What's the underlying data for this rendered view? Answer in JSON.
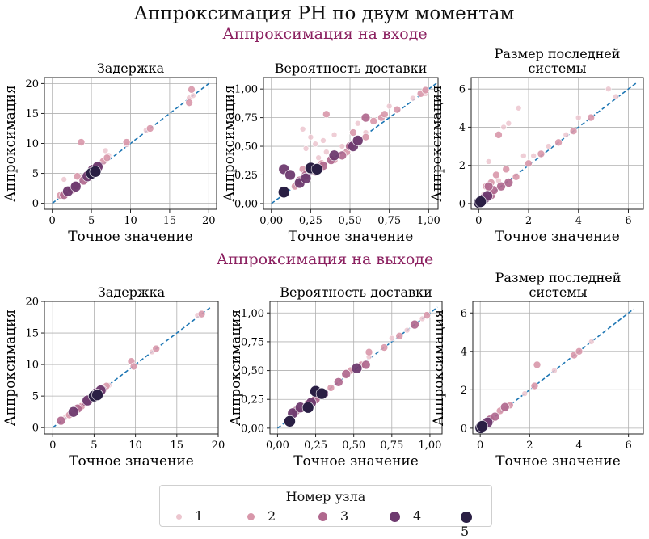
{
  "title": "Аппроксимация PH по двум моментам",
  "section_input": "Аппроксимация на входе",
  "section_output": "Аппроксимация на выходе",
  "colors": {
    "section": "#8b2060",
    "diag": "#1f77b4",
    "nodes": [
      "#ecc6cf",
      "#d897aa",
      "#b0688e",
      "#6e3a6f",
      "#2a1f44"
    ]
  },
  "legend": {
    "title": "Номер узла",
    "items": [
      "1",
      "2",
      "3",
      "4",
      "5"
    ]
  },
  "chart_data": [
    {
      "type": "scatter",
      "title": "Задержка",
      "xlabel": "Точное значение",
      "ylabel": "Аппроксимация",
      "xlim": [
        -1,
        21
      ],
      "ylim": [
        -1,
        21
      ],
      "xticks": [
        0,
        5,
        10,
        15,
        20
      ],
      "yticks": [
        0,
        5,
        10,
        15,
        20
      ],
      "xtick_labels": [
        "0",
        "5",
        "10",
        "15",
        "20"
      ],
      "ytick_labels": [
        "0",
        "5",
        "10",
        "15",
        "20"
      ],
      "diag_max": 20,
      "grid": true,
      "series": [
        {
          "node": 1,
          "points": [
            [
              1.5,
              4
            ],
            [
              3,
              3.2
            ],
            [
              3.8,
              4.5
            ],
            [
              6.8,
              8.8
            ],
            [
              7.2,
              8
            ],
            [
              9.5,
              9.8
            ],
            [
              12,
              12.2
            ],
            [
              17.5,
              17.6
            ],
            [
              18,
              18
            ],
            [
              2.5,
              2.6
            ]
          ]
        },
        {
          "node": 2,
          "points": [
            [
              1,
              1.3
            ],
            [
              2,
              2.2
            ],
            [
              3.2,
              4.5
            ],
            [
              3.7,
              10.2
            ],
            [
              6.5,
              7
            ],
            [
              7,
              7.6
            ],
            [
              9.5,
              10.2
            ],
            [
              12.5,
              12.5
            ],
            [
              17.5,
              16.8
            ],
            [
              17.8,
              19
            ]
          ]
        },
        {
          "node": 3,
          "points": [
            [
              1.5,
              1.4
            ],
            [
              2.5,
              2.3
            ],
            [
              3,
              3
            ],
            [
              4,
              3.8
            ],
            [
              5.5,
              5.2
            ],
            [
              6,
              6.3
            ]
          ]
        },
        {
          "node": 4,
          "points": [
            [
              2,
              2
            ],
            [
              3,
              2.8
            ],
            [
              4.5,
              4.5
            ],
            [
              5.2,
              5.6
            ],
            [
              5.8,
              6.1
            ]
          ]
        },
        {
          "node": 5,
          "points": [
            [
              5,
              5
            ],
            [
              5.5,
              5.3
            ]
          ]
        }
      ]
    },
    {
      "type": "scatter",
      "title": "Вероятность доставки",
      "xlabel": "Точное значение",
      "ylabel": "Аппроксимация",
      "xlim": [
        -0.05,
        1.06
      ],
      "ylim": [
        -0.05,
        1.1
      ],
      "xticks": [
        0,
        0.25,
        0.5,
        0.75,
        1
      ],
      "yticks": [
        0,
        0.25,
        0.5,
        0.75,
        1
      ],
      "xtick_labels": [
        "0,00",
        "0,25",
        "0,50",
        "0,75",
        "1,00"
      ],
      "ytick_labels": [
        "0,00",
        "0,25",
        "0,50",
        "0,75",
        "1,00"
      ],
      "diag_max": 1.05,
      "grid": true,
      "series": [
        {
          "node": 1,
          "points": [
            [
              0.2,
              0.65
            ],
            [
              0.25,
              0.58
            ],
            [
              0.28,
              0.52
            ],
            [
              0.33,
              0.55
            ],
            [
              0.35,
              0.45
            ],
            [
              0.4,
              0.6
            ],
            [
              0.45,
              0.5
            ],
            [
              0.55,
              0.7
            ],
            [
              0.6,
              0.62
            ],
            [
              0.75,
              0.85
            ],
            [
              0.9,
              0.92
            ],
            [
              0.98,
              0.96
            ],
            [
              0.22,
              0.48
            ],
            [
              0.3,
              0.4
            ]
          ]
        },
        {
          "node": 2,
          "points": [
            [
              0.15,
              0.15
            ],
            [
              0.2,
              0.3
            ],
            [
              0.32,
              0.35
            ],
            [
              0.35,
              0.78
            ],
            [
              0.4,
              0.38
            ],
            [
              0.48,
              0.45
            ],
            [
              0.5,
              0.5
            ],
            [
              0.52,
              0.62
            ],
            [
              0.6,
              0.58
            ],
            [
              0.65,
              0.72
            ],
            [
              0.7,
              0.75
            ],
            [
              0.72,
              0.78
            ],
            [
              0.8,
              0.82
            ],
            [
              0.95,
              0.96
            ],
            [
              0.98,
              0.99
            ]
          ]
        },
        {
          "node": 3,
          "points": [
            [
              0.18,
              0.2
            ],
            [
              0.22,
              0.25
            ],
            [
              0.28,
              0.28
            ],
            [
              0.33,
              0.33
            ],
            [
              0.45,
              0.42
            ],
            [
              0.5,
              0.5
            ],
            [
              0.55,
              0.55
            ],
            [
              0.6,
              0.75
            ],
            [
              0.38,
              0.38
            ]
          ]
        },
        {
          "node": 4,
          "points": [
            [
              0.08,
              0.3
            ],
            [
              0.12,
              0.25
            ],
            [
              0.18,
              0.18
            ],
            [
              0.22,
              0.22
            ],
            [
              0.25,
              0.3
            ],
            [
              0.4,
              0.42
            ],
            [
              0.52,
              0.5
            ],
            [
              0.55,
              0.55
            ]
          ]
        },
        {
          "node": 5,
          "points": [
            [
              0.08,
              0.1
            ],
            [
              0.25,
              0.31
            ],
            [
              0.29,
              0.3
            ]
          ]
        }
      ]
    },
    {
      "type": "scatter",
      "title": "Размер последней системы",
      "xlabel": "Точное значение",
      "ylabel": "Аппроксимация",
      "xlim": [
        -0.3,
        6.6
      ],
      "ylim": [
        -0.3,
        6.6
      ],
      "xticks": [
        0,
        2,
        4,
        6
      ],
      "yticks": [
        0,
        2,
        4,
        6
      ],
      "xtick_labels": [
        "0",
        "2",
        "4",
        "6"
      ],
      "ytick_labels": [
        "0",
        "2",
        "4",
        "6"
      ],
      "diag_max": 6.3,
      "grid": true,
      "series": [
        {
          "node": 1,
          "points": [
            [
              0.2,
              0.5
            ],
            [
              0.4,
              2.2
            ],
            [
              0.8,
              1.2
            ],
            [
              1,
              4
            ],
            [
              1.2,
              4.2
            ],
            [
              1.8,
              2.5
            ],
            [
              2.2,
              2.5
            ],
            [
              2.8,
              3
            ],
            [
              3.5,
              3.6
            ],
            [
              4,
              4.5
            ],
            [
              5.2,
              6
            ],
            [
              5.5,
              5.6
            ],
            [
              1.6,
              5
            ]
          ]
        },
        {
          "node": 2,
          "points": [
            [
              0.3,
              0.9
            ],
            [
              0.5,
              1.1
            ],
            [
              0.7,
              1.5
            ],
            [
              0.8,
              3.6
            ],
            [
              1.1,
              1.8
            ],
            [
              1.5,
              1.4
            ],
            [
              2,
              2.1
            ],
            [
              2.5,
              2.6
            ],
            [
              3.2,
              3.2
            ],
            [
              3.8,
              3.8
            ],
            [
              4.5,
              4.5
            ],
            [
              0.4,
              0.6
            ],
            [
              0.2,
              0.4
            ]
          ]
        },
        {
          "node": 3,
          "points": [
            [
              0.1,
              0.15
            ],
            [
              0.2,
              0.3
            ],
            [
              0.3,
              0.35
            ],
            [
              0.5,
              0.45
            ],
            [
              0.6,
              0.7
            ],
            [
              0.9,
              0.9
            ],
            [
              1.2,
              1.1
            ],
            [
              0.4,
              0.9
            ]
          ]
        },
        {
          "node": 4,
          "points": [
            [
              0.05,
              0.08
            ],
            [
              0.15,
              0.2
            ],
            [
              0.25,
              0.28
            ],
            [
              0.35,
              0.4
            ]
          ]
        },
        {
          "node": 5,
          "points": [
            [
              0.02,
              0.05
            ],
            [
              0.08,
              0.1
            ]
          ]
        }
      ]
    },
    {
      "type": "scatter",
      "title": "Задержка",
      "xlabel": "Точное значение",
      "ylabel": "Аппроксимация",
      "xlim": [
        -1,
        20
      ],
      "ylim": [
        -1,
        20
      ],
      "xticks": [
        0,
        5,
        10,
        15,
        20
      ],
      "yticks": [
        0,
        5,
        10,
        15,
        20
      ],
      "xtick_labels": [
        "0",
        "5",
        "10",
        "15",
        "20"
      ],
      "ytick_labels": [
        "0",
        "5",
        "10",
        "15",
        "20"
      ],
      "diag_max": 19,
      "grid": true,
      "series": [
        {
          "node": 1,
          "points": [
            [
              1.5,
              1.6
            ],
            [
              2.5,
              2.4
            ],
            [
              6.8,
              6.7
            ],
            [
              12,
              12
            ],
            [
              17.5,
              17.8
            ],
            [
              3,
              3.1
            ]
          ]
        },
        {
          "node": 2,
          "points": [
            [
              2,
              2
            ],
            [
              3.5,
              3.4
            ],
            [
              9.5,
              10.5
            ],
            [
              9.8,
              9.7
            ],
            [
              12.5,
              12.5
            ],
            [
              18,
              18
            ],
            [
              6.5,
              6.6
            ]
          ]
        },
        {
          "node": 3,
          "points": [
            [
              1,
              1.1
            ],
            [
              3,
              3
            ],
            [
              4,
              4
            ],
            [
              5.5,
              5.6
            ],
            [
              6,
              6
            ]
          ]
        },
        {
          "node": 4,
          "points": [
            [
              2.5,
              2.5
            ],
            [
              4.2,
              4.3
            ],
            [
              5.3,
              5.5
            ],
            [
              5.8,
              5.9
            ]
          ]
        },
        {
          "node": 5,
          "points": [
            [
              5,
              5
            ],
            [
              5.4,
              5.2
            ]
          ]
        }
      ]
    },
    {
      "type": "scatter",
      "title": "Вероятность доставки",
      "xlabel": "Точное значение",
      "ylabel": "Аппроксимация",
      "xlim": [
        -0.05,
        1.08
      ],
      "ylim": [
        -0.05,
        1.1
      ],
      "xticks": [
        0,
        0.25,
        0.5,
        0.75,
        1
      ],
      "yticks": [
        0,
        0.25,
        0.5,
        0.75,
        1
      ],
      "xtick_labels": [
        "0,00",
        "0,25",
        "0,50",
        "0,75",
        "1,00"
      ],
      "ytick_labels": [
        "0,00",
        "0,25",
        "0,50",
        "0,75",
        "1,00"
      ],
      "diag_max": 1.05,
      "grid": true,
      "series": [
        {
          "node": 1,
          "points": [
            [
              0.3,
              0.32
            ],
            [
              0.45,
              0.45
            ],
            [
              0.6,
              0.62
            ],
            [
              0.75,
              0.78
            ],
            [
              0.85,
              0.85
            ],
            [
              0.95,
              0.95
            ]
          ]
        },
        {
          "node": 2,
          "points": [
            [
              0.2,
              0.22
            ],
            [
              0.35,
              0.35
            ],
            [
              0.48,
              0.5
            ],
            [
              0.55,
              0.55
            ],
            [
              0.6,
              0.66
            ],
            [
              0.7,
              0.7
            ],
            [
              0.8,
              0.8
            ],
            [
              0.98,
              0.98
            ]
          ]
        },
        {
          "node": 3,
          "points": [
            [
              0.12,
              0.15
            ],
            [
              0.25,
              0.25
            ],
            [
              0.4,
              0.4
            ],
            [
              0.45,
              0.47
            ],
            [
              0.58,
              0.55
            ],
            [
              0.9,
              0.9
            ]
          ]
        },
        {
          "node": 4,
          "points": [
            [
              0.1,
              0.13
            ],
            [
              0.15,
              0.18
            ],
            [
              0.22,
              0.22
            ],
            [
              0.3,
              0.3
            ],
            [
              0.52,
              0.52
            ]
          ]
        },
        {
          "node": 5,
          "points": [
            [
              0.08,
              0.06
            ],
            [
              0.2,
              0.18
            ],
            [
              0.25,
              0.32
            ],
            [
              0.29,
              0.3
            ]
          ]
        }
      ]
    },
    {
      "type": "scatter",
      "title": "Размер последней системы",
      "xlabel": "Точное значение",
      "ylabel": "Аппроксимация",
      "xlim": [
        -0.3,
        6.6
      ],
      "ylim": [
        -0.3,
        6.6
      ],
      "xticks": [
        0,
        2,
        4,
        6
      ],
      "yticks": [
        0,
        2,
        4,
        6
      ],
      "xtick_labels": [
        "0",
        "2",
        "4",
        "6"
      ],
      "ytick_labels": [
        "0",
        "2",
        "4",
        "6"
      ],
      "diag_max": 6.2,
      "grid": true,
      "series": [
        {
          "node": 1,
          "points": [
            [
              0.5,
              0.5
            ],
            [
              1,
              1
            ],
            [
              1.8,
              1.8
            ],
            [
              3,
              3
            ],
            [
              4.5,
              4.5
            ]
          ]
        },
        {
          "node": 2,
          "points": [
            [
              0.8,
              0.9
            ],
            [
              1.2,
              1.2
            ],
            [
              2.2,
              2.2
            ],
            [
              2.3,
              3.3
            ],
            [
              3.8,
              3.8
            ],
            [
              4,
              4
            ]
          ]
        },
        {
          "node": 3,
          "points": [
            [
              0.2,
              0.2
            ],
            [
              0.4,
              0.45
            ],
            [
              0.6,
              0.6
            ],
            [
              1,
              1.1
            ]
          ]
        },
        {
          "node": 4,
          "points": [
            [
              0.05,
              0.1
            ],
            [
              0.15,
              0.15
            ],
            [
              0.3,
              0.3
            ]
          ]
        },
        {
          "node": 5,
          "points": [
            [
              0.02,
              0.02
            ],
            [
              0.08,
              0.1
            ]
          ]
        }
      ]
    }
  ]
}
